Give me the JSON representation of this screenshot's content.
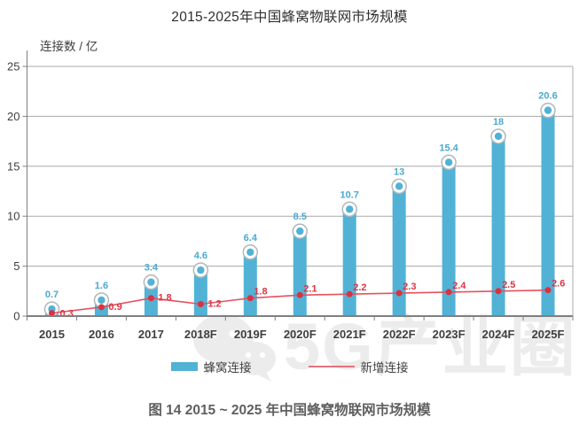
{
  "page": {
    "caption": "图 14 2015 ~ 2025 年中国蜂窝物联网市场规模"
  },
  "chart_data": {
    "type": "bar",
    "title": "2015-2025年中国蜂窝物联网市场规模",
    "categories": [
      "2015",
      "2016",
      "2017",
      "2018F",
      "2019F",
      "2020F",
      "2021F",
      "2022F",
      "2023F",
      "2024F",
      "2025F"
    ],
    "series": [
      {
        "name": "蜂窝连接",
        "type": "bar",
        "values": [
          0.7,
          1.6,
          3.4,
          4.6,
          6.4,
          8.5,
          10.7,
          13,
          15.4,
          18,
          20.6
        ]
      },
      {
        "name": "新增连接",
        "type": "line",
        "values": [
          0.3,
          0.9,
          1.8,
          1.2,
          1.8,
          2.1,
          2.2,
          2.3,
          2.4,
          2.5,
          2.6
        ]
      }
    ],
    "xlabel": "",
    "ylabel": "连接数 / 亿",
    "ylim": [
      0,
      25
    ],
    "yticks": [
      0,
      5,
      10,
      15,
      20,
      25
    ],
    "grid": true,
    "legend_position": "bottom"
  },
  "legend": {
    "items": [
      {
        "label": "蜂窝连接",
        "type": "bar"
      },
      {
        "label": "新增连接",
        "type": "line"
      }
    ]
  },
  "watermark": {
    "text": "5G产业圈",
    "icon": "wechat-icon"
  },
  "colors": {
    "bar": "#52B2D6",
    "bar_label": "#4AA9D0",
    "line": "#E5525F",
    "line_dot": "#D93240",
    "line_label": "#DA3544",
    "legend_line": "#E2737E",
    "marker_ring": "#B0B7BC",
    "grid": "#A8A8A8",
    "axis": "#7F7F7F",
    "tick_text": "#3F3F3F",
    "watermark": "#ECECEC"
  }
}
